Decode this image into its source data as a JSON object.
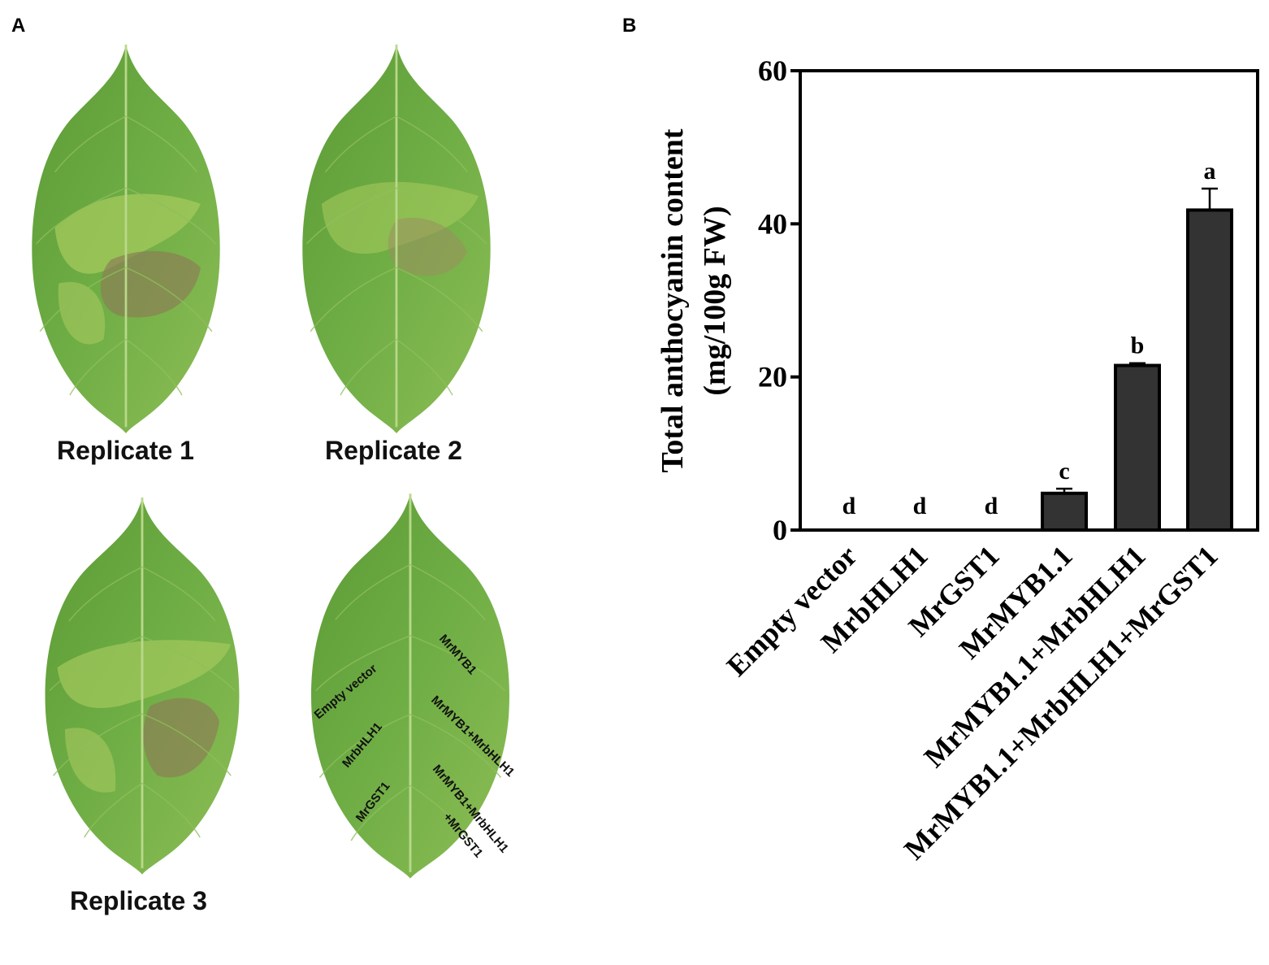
{
  "panels": {
    "a": "A",
    "b": "B"
  },
  "leaves": {
    "replicate1": "Replicate 1",
    "replicate2": "Replicate 2",
    "replicate3": "Replicate 3",
    "annotations": {
      "empty_vector": "Empty vector",
      "mrbhlh1": "MrbHLH1",
      "mrgst1": "MrGST1",
      "mrmyb1": "MrMYB1",
      "mrmyb1_mrbhlh1": "MrMYB1+MrbHLH1",
      "triple_line1": "MrMYB1+MrbHLH1",
      "triple_line2": "+MrGST1"
    }
  },
  "colors": {
    "leaf_green": "#6aa640",
    "leaf_light": "#9cc95a",
    "leaf_patch": "#8a7a52",
    "bar_fill": "#333333"
  },
  "chart_data": {
    "type": "bar",
    "ylabel_line1": "Total anthocyanin content",
    "ylabel_line2": "(mg/100g FW)",
    "ylim": [
      0,
      60
    ],
    "yticks": [
      "0",
      "20",
      "40",
      "60"
    ],
    "categories": [
      "Empty vector",
      "MrbHLH1",
      "MrGST1",
      "MrMYB1.1",
      "MrMYB1.1+MrbHLH1",
      "MrMYB1.1+MrbHLH1+MrGST1"
    ],
    "values": [
      0,
      0,
      0,
      4.8,
      21.5,
      41.8
    ],
    "errors": [
      0,
      0,
      0,
      0.6,
      0.3,
      2.8
    ],
    "letters": [
      "d",
      "d",
      "d",
      "c",
      "b",
      "a"
    ]
  }
}
